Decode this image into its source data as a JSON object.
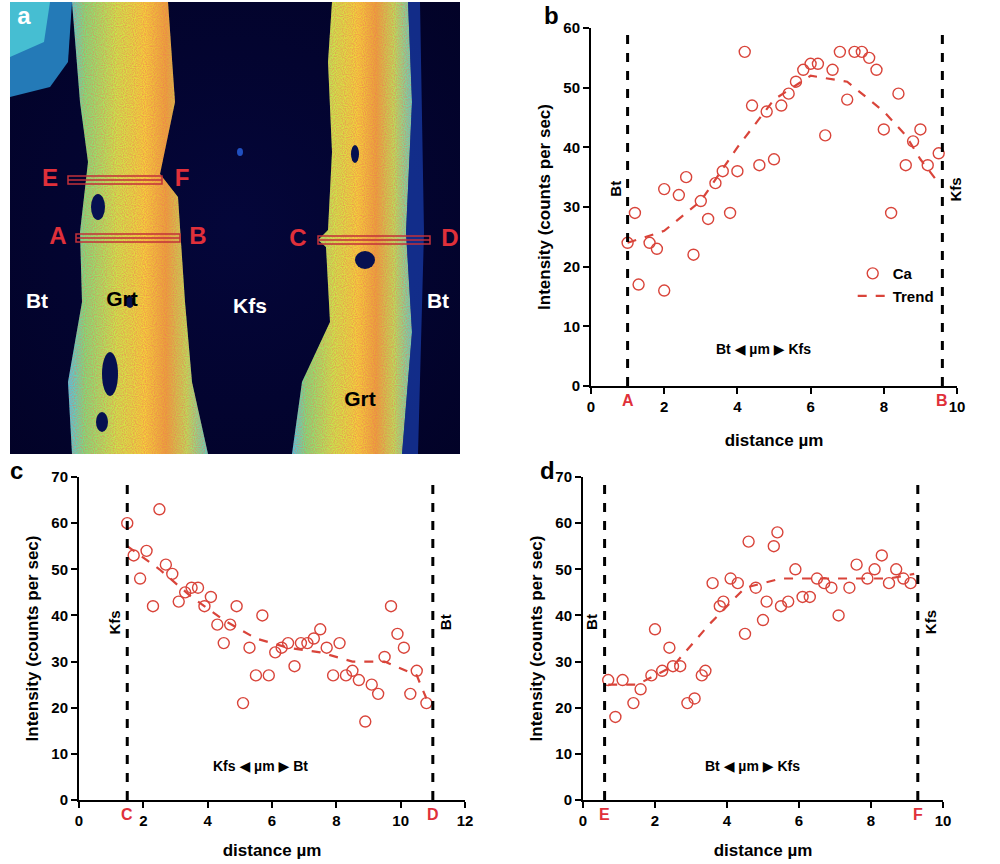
{
  "map_panel": {
    "panel": "a",
    "mineral_labels": [
      "Bt",
      "Grt",
      "Kfs",
      "Bt",
      "Grt"
    ],
    "profiles": [
      [
        "E",
        "F"
      ],
      [
        "A",
        "B"
      ],
      [
        "C",
        "D"
      ]
    ]
  },
  "chart_data": [
    {
      "type": "scatter",
      "panel": "b",
      "x_label": "distance µm",
      "y_label": "Intensity (counts per sec)",
      "xlim": [
        0,
        10
      ],
      "xticks": [
        0,
        2,
        4,
        6,
        8,
        10
      ],
      "ylim": [
        0,
        60
      ],
      "yticks": [
        0,
        10,
        20,
        30,
        40,
        50,
        60
      ],
      "grid": false,
      "legend": "lower right",
      "boundaries": [
        {
          "value": 1.0,
          "label": "A"
        },
        {
          "value": 9.6,
          "label": "B"
        }
      ],
      "side_labels": [
        "Bt",
        "Kfs"
      ],
      "profile_label": "Bt ◀ µm ▶ Kfs",
      "series": [
        {
          "name": "Ca",
          "type": "scatter",
          "marker": "circle-open",
          "color": "#d9443a",
          "x": [
            1.0,
            1.2,
            1.3,
            1.6,
            1.8,
            2.0,
            2.0,
            2.4,
            2.6,
            2.8,
            3.0,
            3.2,
            3.4,
            3.6,
            3.8,
            4.0,
            4.2,
            4.4,
            4.6,
            4.8,
            5.0,
            5.2,
            5.4,
            5.6,
            5.8,
            6.0,
            6.2,
            6.4,
            6.6,
            6.8,
            7.0,
            7.2,
            7.4,
            7.6,
            7.8,
            8.0,
            8.2,
            8.4,
            8.6,
            8.8,
            9.0,
            9.2,
            9.5
          ],
          "values": [
            24,
            29,
            17,
            24,
            23,
            16,
            33,
            32,
            35,
            22,
            31,
            28,
            34,
            36,
            29,
            36,
            56,
            47,
            37,
            46,
            38,
            47,
            49,
            51,
            53,
            54,
            54,
            42,
            53,
            56,
            48,
            56,
            56,
            55,
            53,
            43,
            29,
            49,
            37,
            41,
            43,
            37,
            39
          ]
        },
        {
          "name": "Trend",
          "type": "line",
          "line_style": "dash",
          "color": "#d9443a",
          "x": [
            1.0,
            2.0,
            3.0,
            4.0,
            5.0,
            6.0,
            7.0,
            8.0,
            8.6,
            9.0,
            9.5
          ],
          "values": [
            24,
            26,
            31,
            40,
            48,
            52,
            51,
            46,
            42,
            38,
            34
          ]
        }
      ]
    },
    {
      "type": "scatter",
      "panel": "c",
      "x_label": "distance µm",
      "y_label": "Intensity (counts per sec)",
      "xlim": [
        0,
        12
      ],
      "xticks": [
        0,
        2,
        4,
        6,
        8,
        10,
        12
      ],
      "ylim": [
        0,
        70
      ],
      "yticks": [
        0,
        10,
        20,
        30,
        40,
        50,
        60,
        70
      ],
      "grid": false,
      "boundaries": [
        {
          "value": 1.5,
          "label": "C"
        },
        {
          "value": 11.0,
          "label": "D"
        }
      ],
      "side_labels": [
        "Kfs",
        "Bt"
      ],
      "profile_label": "Kfs ◀ µm ▶ Bt",
      "series": [
        {
          "type": "scatter",
          "marker": "circle-open",
          "color": "#d9443a",
          "x": [
            1.5,
            1.7,
            1.9,
            2.1,
            2.3,
            2.5,
            2.7,
            2.9,
            3.1,
            3.3,
            3.5,
            3.7,
            3.9,
            4.1,
            4.3,
            4.5,
            4.7,
            4.9,
            5.1,
            5.3,
            5.5,
            5.7,
            5.9,
            6.1,
            6.3,
            6.5,
            6.7,
            6.9,
            7.1,
            7.3,
            7.5,
            7.7,
            7.9,
            8.1,
            8.3,
            8.5,
            8.7,
            8.9,
            9.1,
            9.3,
            9.5,
            9.7,
            9.9,
            10.1,
            10.3,
            10.5,
            10.8
          ],
          "values": [
            60,
            53,
            48,
            54,
            42,
            63,
            51,
            49,
            43,
            45,
            46,
            46,
            42,
            44,
            38,
            34,
            38,
            42,
            21,
            33,
            27,
            40,
            27,
            32,
            33,
            34,
            29,
            34,
            34,
            35,
            37,
            33,
            27,
            34,
            27,
            28,
            26,
            17,
            25,
            23,
            31,
            42,
            36,
            33,
            23,
            28,
            21
          ]
        },
        {
          "type": "line",
          "line_style": "dash",
          "color": "#d9443a",
          "x": [
            1.5,
            2.5,
            3.5,
            4.5,
            5.5,
            6.5,
            7.5,
            8.5,
            9.5,
            10.5,
            10.8
          ],
          "values": [
            55,
            50,
            44,
            39,
            35,
            33,
            32,
            30,
            30,
            27,
            22
          ]
        }
      ]
    },
    {
      "type": "scatter",
      "panel": "d",
      "x_label": "distance µm",
      "y_label": "Intensity (counts per sec)",
      "xlim": [
        0,
        10
      ],
      "xticks": [
        0,
        2,
        4,
        6,
        8,
        10
      ],
      "ylim": [
        0,
        70
      ],
      "yticks": [
        0,
        10,
        20,
        30,
        40,
        50,
        60,
        70
      ],
      "grid": false,
      "boundaries": [
        {
          "value": 0.6,
          "label": "E"
        },
        {
          "value": 9.3,
          "label": "F"
        }
      ],
      "side_labels": [
        "Bt",
        "Kfs"
      ],
      "profile_label": "Bt ◀ µm ▶ Kfs",
      "series": [
        {
          "type": "scatter",
          "marker": "circle-open",
          "color": "#d9443a",
          "x": [
            0.7,
            0.9,
            1.1,
            1.4,
            1.6,
            1.9,
            2.0,
            2.2,
            2.4,
            2.5,
            2.7,
            2.9,
            3.1,
            3.3,
            3.4,
            3.6,
            3.8,
            3.9,
            4.1,
            4.3,
            4.5,
            4.6,
            4.8,
            5.0,
            5.1,
            5.3,
            5.4,
            5.5,
            5.7,
            5.9,
            6.1,
            6.3,
            6.5,
            6.7,
            6.9,
            7.1,
            7.4,
            7.6,
            7.9,
            8.1,
            8.3,
            8.5,
            8.7,
            8.9,
            9.1
          ],
          "values": [
            26,
            18,
            26,
            21,
            24,
            27,
            37,
            28,
            33,
            29,
            29,
            21,
            22,
            27,
            28,
            47,
            42,
            43,
            48,
            47,
            36,
            56,
            46,
            39,
            43,
            55,
            58,
            42,
            43,
            50,
            44,
            44,
            48,
            47,
            46,
            40,
            46,
            51,
            48,
            50,
            53,
            47,
            50,
            48,
            47
          ]
        },
        {
          "type": "line",
          "line_style": "dash",
          "color": "#d9443a",
          "x": [
            0.7,
            1.5,
            2.5,
            3.5,
            4.5,
            5.5,
            6.5,
            7.5,
            8.5,
            9.2
          ],
          "values": [
            25,
            25,
            29,
            38,
            46,
            48,
            48,
            48,
            48,
            49
          ]
        }
      ]
    }
  ]
}
